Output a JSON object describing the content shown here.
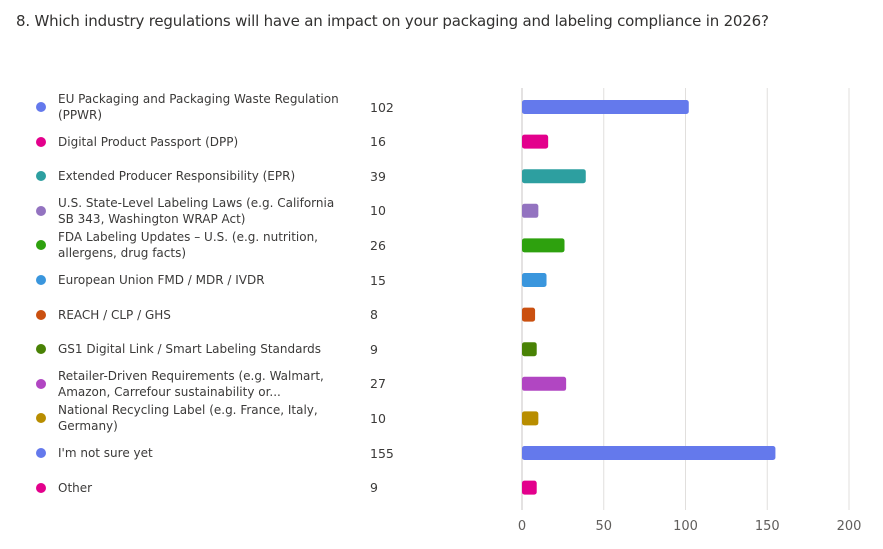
{
  "question": {
    "title": "8. Which industry regulations will have an impact on your packaging and labeling compliance in 2026?"
  },
  "chart_data": {
    "type": "bar",
    "orientation": "horizontal",
    "title": "8. Which industry regulations will have an impact on your packaging and labeling compliance in 2026?",
    "xlabel": "",
    "ylabel": "",
    "xlim": [
      0,
      200
    ],
    "xticks": [
      0,
      50,
      100,
      150,
      200
    ],
    "grid": true,
    "legend": "left",
    "categories": [
      "EU Packaging and Packaging Waste Regulation (PPWR)",
      "Digital Product Passport (DPP)",
      "Extended Producer Responsibility (EPR)",
      "U.S. State-Level Labeling Laws (e.g. California SB 343, Washington WRAP Act)",
      "FDA Labeling Updates – U.S. (e.g. nutrition, allergens, drug facts)",
      "European Union FMD / MDR / IVDR",
      "REACH / CLP / GHS",
      "GS1 Digital Link / Smart Labeling Standards",
      "Retailer-Driven Requirements (e.g. Walmart, Amazon, Carrefour sustainability or...",
      "National Recycling Label (e.g. France, Italy, Germany)",
      "I'm not sure yet",
      "Other"
    ],
    "values": [
      102,
      16,
      39,
      10,
      26,
      15,
      8,
      9,
      27,
      10,
      155,
      9
    ],
    "colors": [
      "#6479ec",
      "#e3008c",
      "#2d9fa0",
      "#9373c0",
      "#2ea10e",
      "#3a96dd",
      "#ca5010",
      "#498205",
      "#b146c2",
      "#b88d00",
      "#6479ec",
      "#e3008c"
    ]
  }
}
